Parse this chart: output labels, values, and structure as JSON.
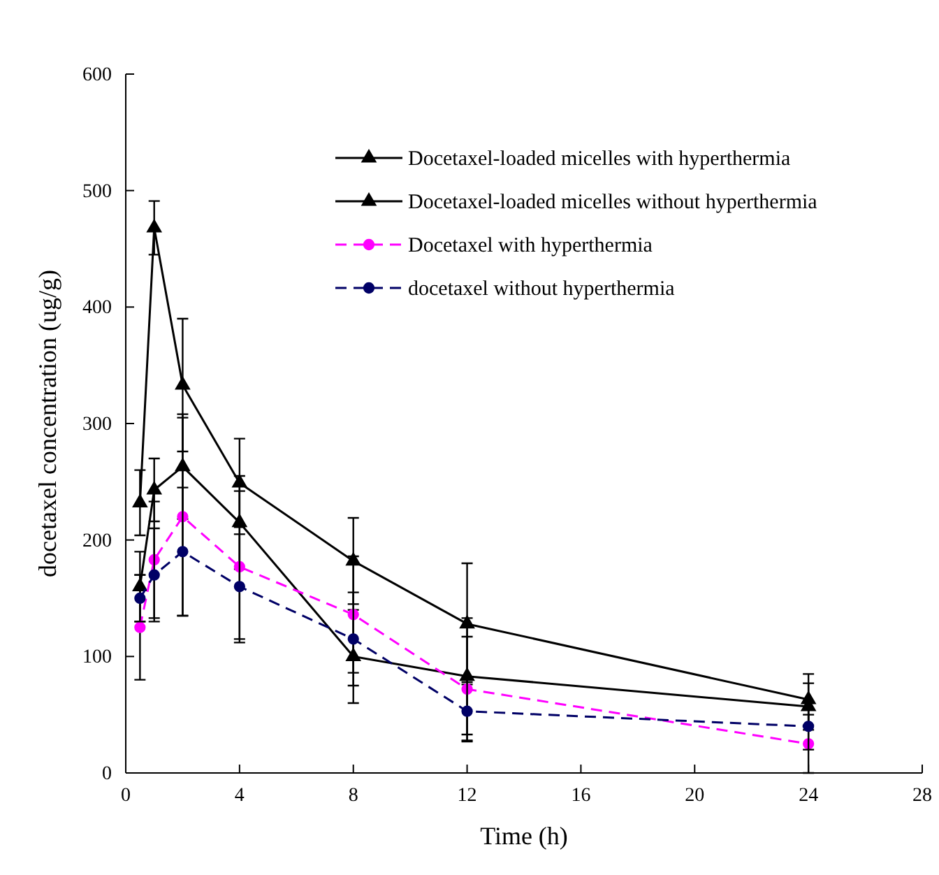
{
  "chart_data": {
    "type": "line",
    "xlabel": "Time (h)",
    "ylabel": "docetaxel concentration (ug/g)",
    "x": [
      0.5,
      1,
      2,
      4,
      8,
      12,
      24
    ],
    "series": [
      {
        "name": "Docetaxel-loaded micelles with hyperthermia",
        "color": "#000000",
        "values": [
          232,
          468,
          333,
          249,
          182,
          128,
          63
        ],
        "errors": [
          28,
          23,
          57,
          38,
          37,
          52,
          22
        ],
        "marker": "triangle",
        "line_style": "solid"
      },
      {
        "name": "Docetaxel-loaded micelles without hyperthermia",
        "color": "#000000",
        "values": [
          160,
          243,
          263,
          215,
          100,
          83,
          57
        ],
        "errors": [
          30,
          27,
          45,
          40,
          40,
          50,
          20
        ],
        "marker": "triangle",
        "line_style": "solid"
      },
      {
        "name": "Docetaxel with hyperthermia",
        "color": "#ff00ff",
        "values": [
          125,
          183,
          220,
          177,
          136,
          72,
          25
        ],
        "errors": [
          45,
          50,
          85,
          65,
          50,
          45,
          25
        ],
        "marker": "circle",
        "line_style": "dashed"
      },
      {
        "name": "docetaxel without hyperthermia",
        "color": "#000066",
        "values": [
          150,
          170,
          190,
          160,
          115,
          53,
          40
        ],
        "errors": [
          20,
          40,
          55,
          45,
          40,
          25,
          20
        ],
        "marker": "circle",
        "line_style": "dashed"
      }
    ],
    "xlim": [
      0,
      28
    ],
    "xticks": [
      0,
      4,
      8,
      12,
      16,
      20,
      24,
      28
    ],
    "ylim": [
      0,
      600
    ],
    "yticks": [
      0,
      100,
      200,
      300,
      400,
      500,
      600
    ],
    "grid": false,
    "legend": "top right"
  }
}
